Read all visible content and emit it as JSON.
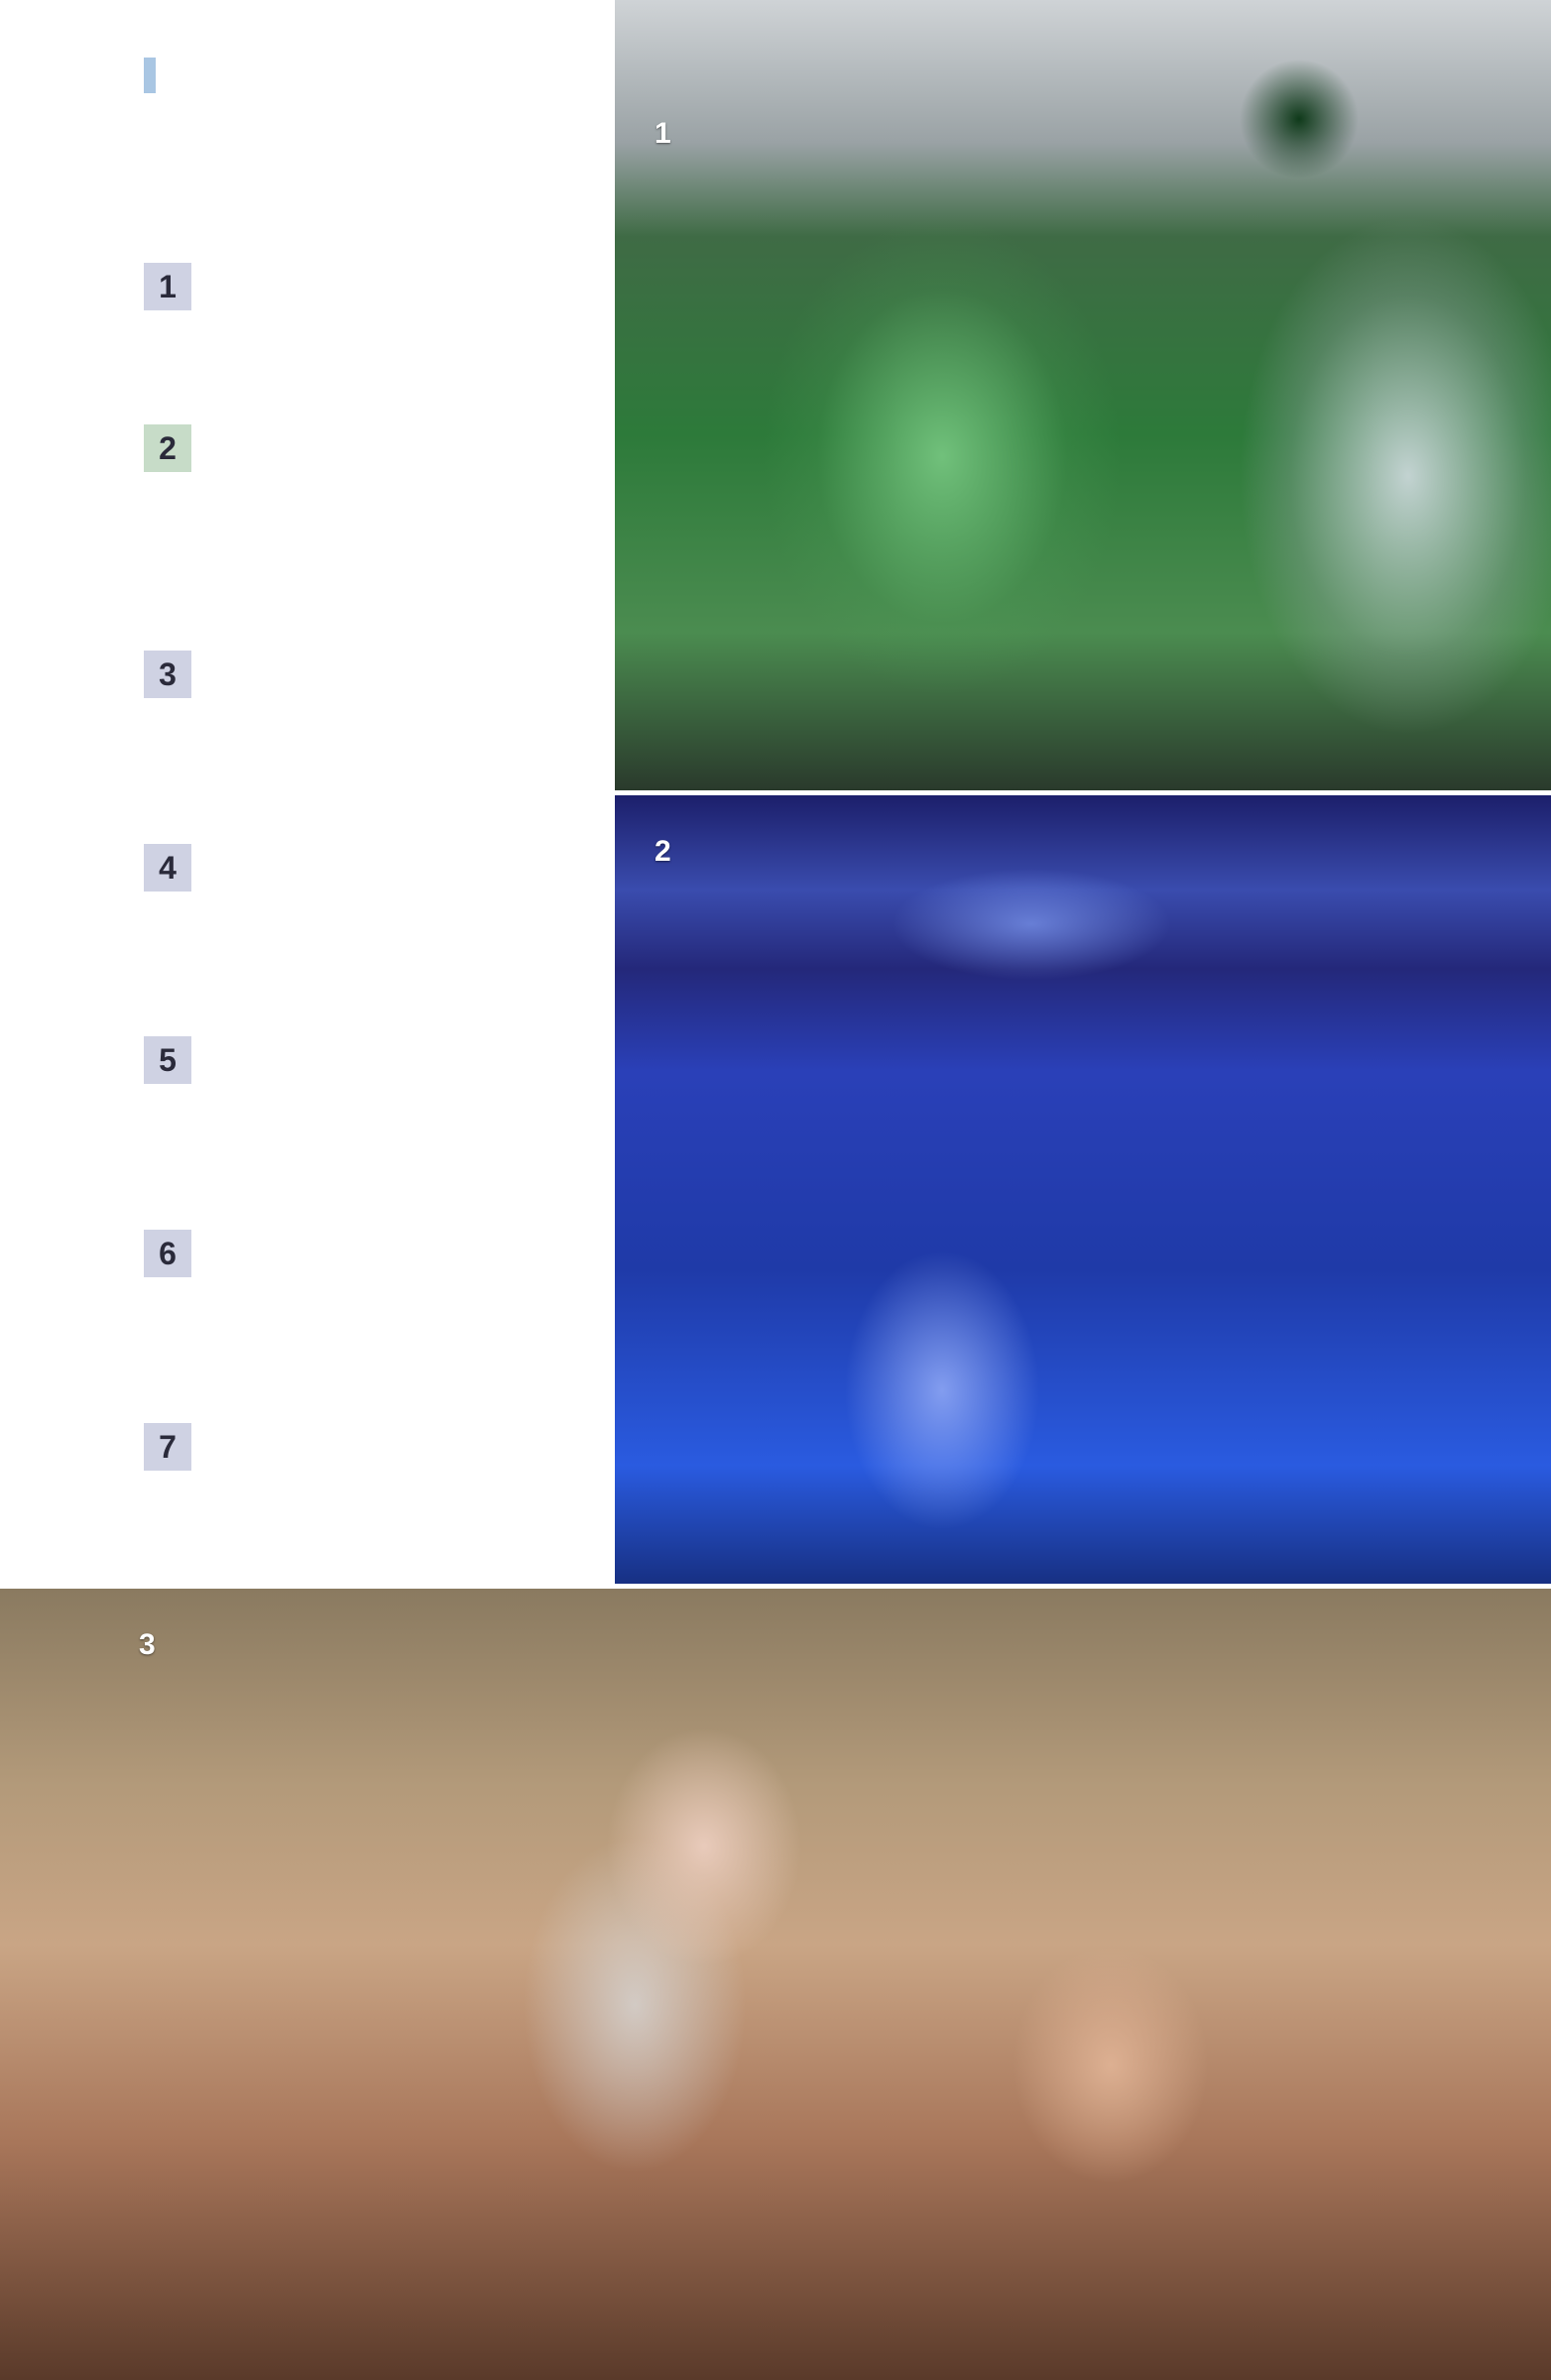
{
  "numbers": [
    "1",
    "2",
    "3",
    "4",
    "5",
    "6",
    "7"
  ],
  "badge_colors": {
    "1": "#cfd2e3",
    "2": "#c7dcc8",
    "3": "#cfd2e3",
    "4": "#cfd2e3",
    "5": "#cfd2e3",
    "6": "#cfd2e3",
    "7": "#cfd2e3"
  },
  "accent_color": "#a9c6e3",
  "photos": [
    {
      "label": "1"
    },
    {
      "label": "2"
    },
    {
      "label": "3"
    }
  ]
}
